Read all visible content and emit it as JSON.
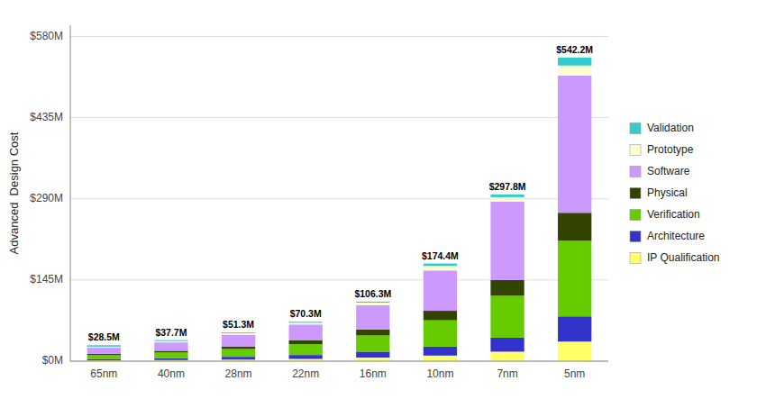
{
  "chart_data": {
    "type": "bar",
    "stacked": true,
    "grid": true,
    "legend": "right",
    "ylabel": "Advanced  Design Cost",
    "categories": [
      "65nm",
      "40nm",
      "28nm",
      "22nm",
      "16nm",
      "10nm",
      "7nm",
      "5nm"
    ],
    "series": [
      {
        "name": "IP Qualification",
        "color": "#ffff66",
        "values": [
          1.5,
          2.0,
          2.8,
          4.0,
          6.5,
          10.0,
          17.0,
          35.0
        ]
      },
      {
        "name": "Architecture",
        "color": "#3333cc",
        "values": [
          2.5,
          3.5,
          5.0,
          7.0,
          10.5,
          16.0,
          25.0,
          45.0
        ]
      },
      {
        "name": "Verification",
        "color": "#66cc00",
        "values": [
          7.0,
          10.0,
          14.0,
          19.5,
          29.0,
          47.0,
          75.0,
          135.0
        ]
      },
      {
        "name": "Physical",
        "color": "#334400",
        "values": [
          2.0,
          3.0,
          4.5,
          6.5,
          10.5,
          17.0,
          28.0,
          50.0
        ]
      },
      {
        "name": "Software",
        "color": "#cc99ff",
        "values": [
          11.0,
          15.0,
          21.0,
          28.5,
          43.5,
          72.0,
          140.0,
          245.0
        ]
      },
      {
        "name": "Prototype",
        "color": "#ffffcc",
        "values": [
          2.0,
          2.5,
          2.5,
          3.0,
          4.5,
          8.0,
          8.0,
          18.0
        ]
      },
      {
        "name": "Validation",
        "color": "#33cccc",
        "values": [
          2.5,
          1.7,
          1.5,
          1.8,
          1.8,
          4.4,
          4.8,
          14.2
        ]
      }
    ],
    "totals": [
      28.5,
      37.7,
      51.3,
      70.3,
      106.3,
      174.4,
      297.8,
      542.2
    ],
    "total_labels": [
      "$28.5M",
      "$37.7M",
      "$51.3M",
      "$70.3M",
      "$106.3M",
      "$174.4M",
      "$297.8M",
      "$542.2M"
    ],
    "ylim": [
      0,
      600
    ],
    "yticks": [
      {
        "value": 0,
        "label": "$0M"
      },
      {
        "value": 145,
        "label": "$145M"
      },
      {
        "value": 290,
        "label": "$290M"
      },
      {
        "value": 435,
        "label": "$435M"
      },
      {
        "value": 580,
        "label": "$580M"
      }
    ]
  }
}
